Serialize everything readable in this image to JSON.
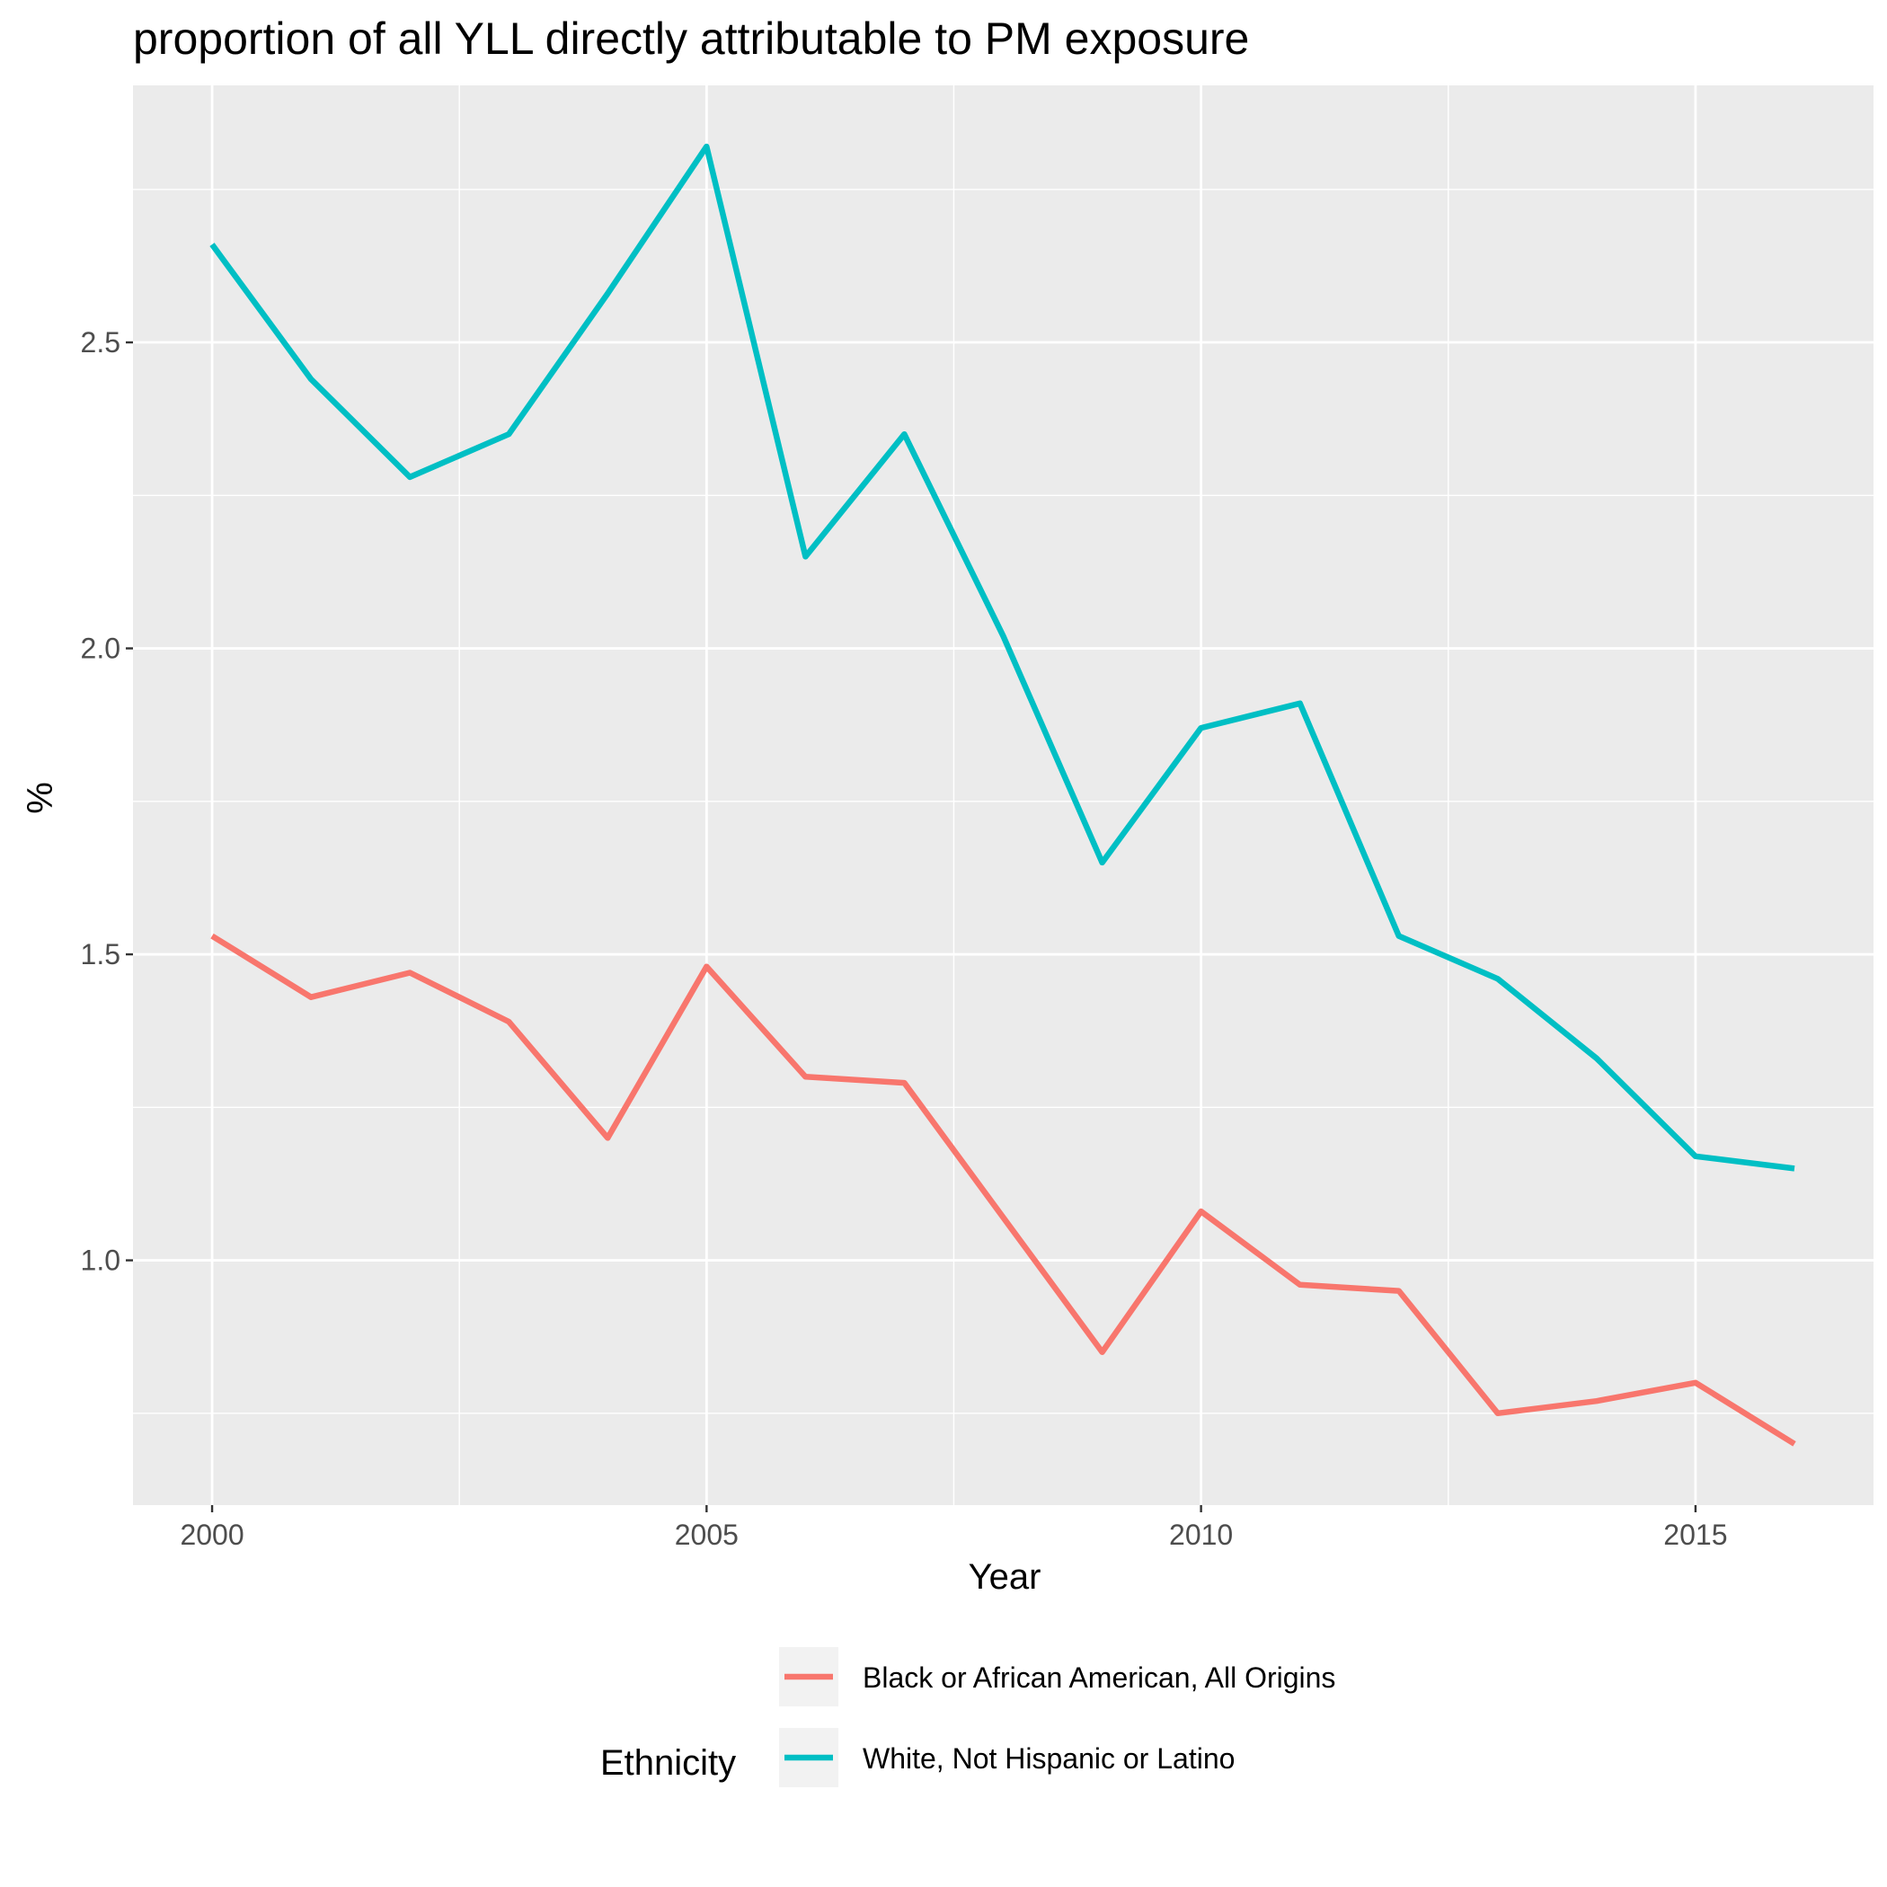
{
  "chart_data": {
    "type": "line",
    "title": "proportion of all YLL directly attributable to PM exposure",
    "xlabel": "Year",
    "ylabel": "%",
    "x": [
      2000,
      2001,
      2002,
      2003,
      2004,
      2005,
      2006,
      2007,
      2008,
      2009,
      2010,
      2011,
      2012,
      2013,
      2014,
      2015,
      2016
    ],
    "xlim": [
      1999.2,
      2016.8
    ],
    "ylim": [
      0.6,
      2.92
    ],
    "x_ticks": [
      2000,
      2005,
      2010,
      2015
    ],
    "x_tick_labels": [
      "2000",
      "2005",
      "2010",
      "2015"
    ],
    "x_minor_ticks": [
      2002.5,
      2007.5,
      2012.5
    ],
    "y_ticks": [
      1.0,
      1.5,
      2.0,
      2.5
    ],
    "y_tick_labels": [
      "1.0",
      "1.5",
      "2.0",
      "2.5"
    ],
    "y_minor_ticks": [
      0.75,
      1.25,
      1.75,
      2.25,
      2.75
    ],
    "grid": true,
    "legend_title": "Ethnicity",
    "legend_position": "bottom",
    "series": [
      {
        "name": "Black or African American, All Origins",
        "color": "#F8766D",
        "values": [
          1.53,
          1.43,
          1.47,
          1.39,
          1.2,
          1.48,
          1.3,
          1.29,
          1.07,
          0.85,
          1.08,
          0.96,
          0.95,
          0.75,
          0.77,
          0.8,
          0.7
        ]
      },
      {
        "name": "White, Not Hispanic or Latino",
        "color": "#00BFC4",
        "values": [
          2.66,
          2.44,
          2.28,
          2.35,
          2.58,
          2.82,
          2.15,
          2.35,
          2.02,
          1.65,
          1.87,
          1.91,
          1.53,
          1.46,
          1.33,
          1.17,
          1.15
        ]
      }
    ]
  }
}
